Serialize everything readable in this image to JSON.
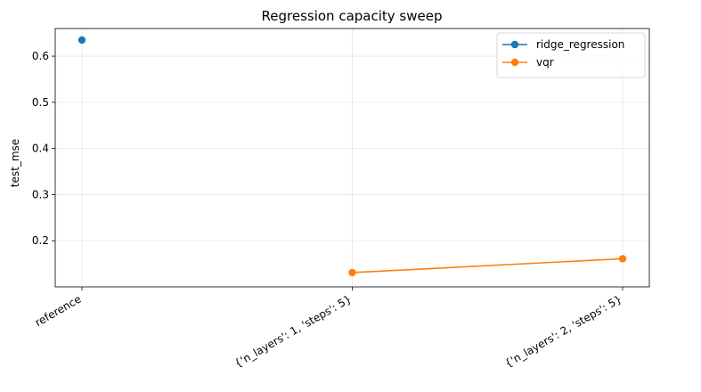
{
  "chart_data": {
    "type": "line",
    "title": "Regression capacity sweep",
    "xlabel": "",
    "ylabel": "test_mse",
    "categories": [
      "reference",
      "{'n_layers': 1, 'steps': 5}",
      "{'n_layers': 2, 'steps': 5}"
    ],
    "ylim": [
      0.1,
      0.66
    ],
    "yticks": [
      0.2,
      0.3,
      0.4,
      0.5,
      0.6
    ],
    "ytick_labels": [
      "0.2",
      "0.3",
      "0.4",
      "0.5",
      "0.6"
    ],
    "grid": true,
    "legend_position": "top-right",
    "series": [
      {
        "name": "ridge_regression",
        "color": "#1f77b4",
        "values": [
          0.635,
          null,
          null
        ]
      },
      {
        "name": "vqr",
        "color": "#ff7f0e",
        "values": [
          null,
          0.131,
          0.161
        ]
      }
    ]
  }
}
